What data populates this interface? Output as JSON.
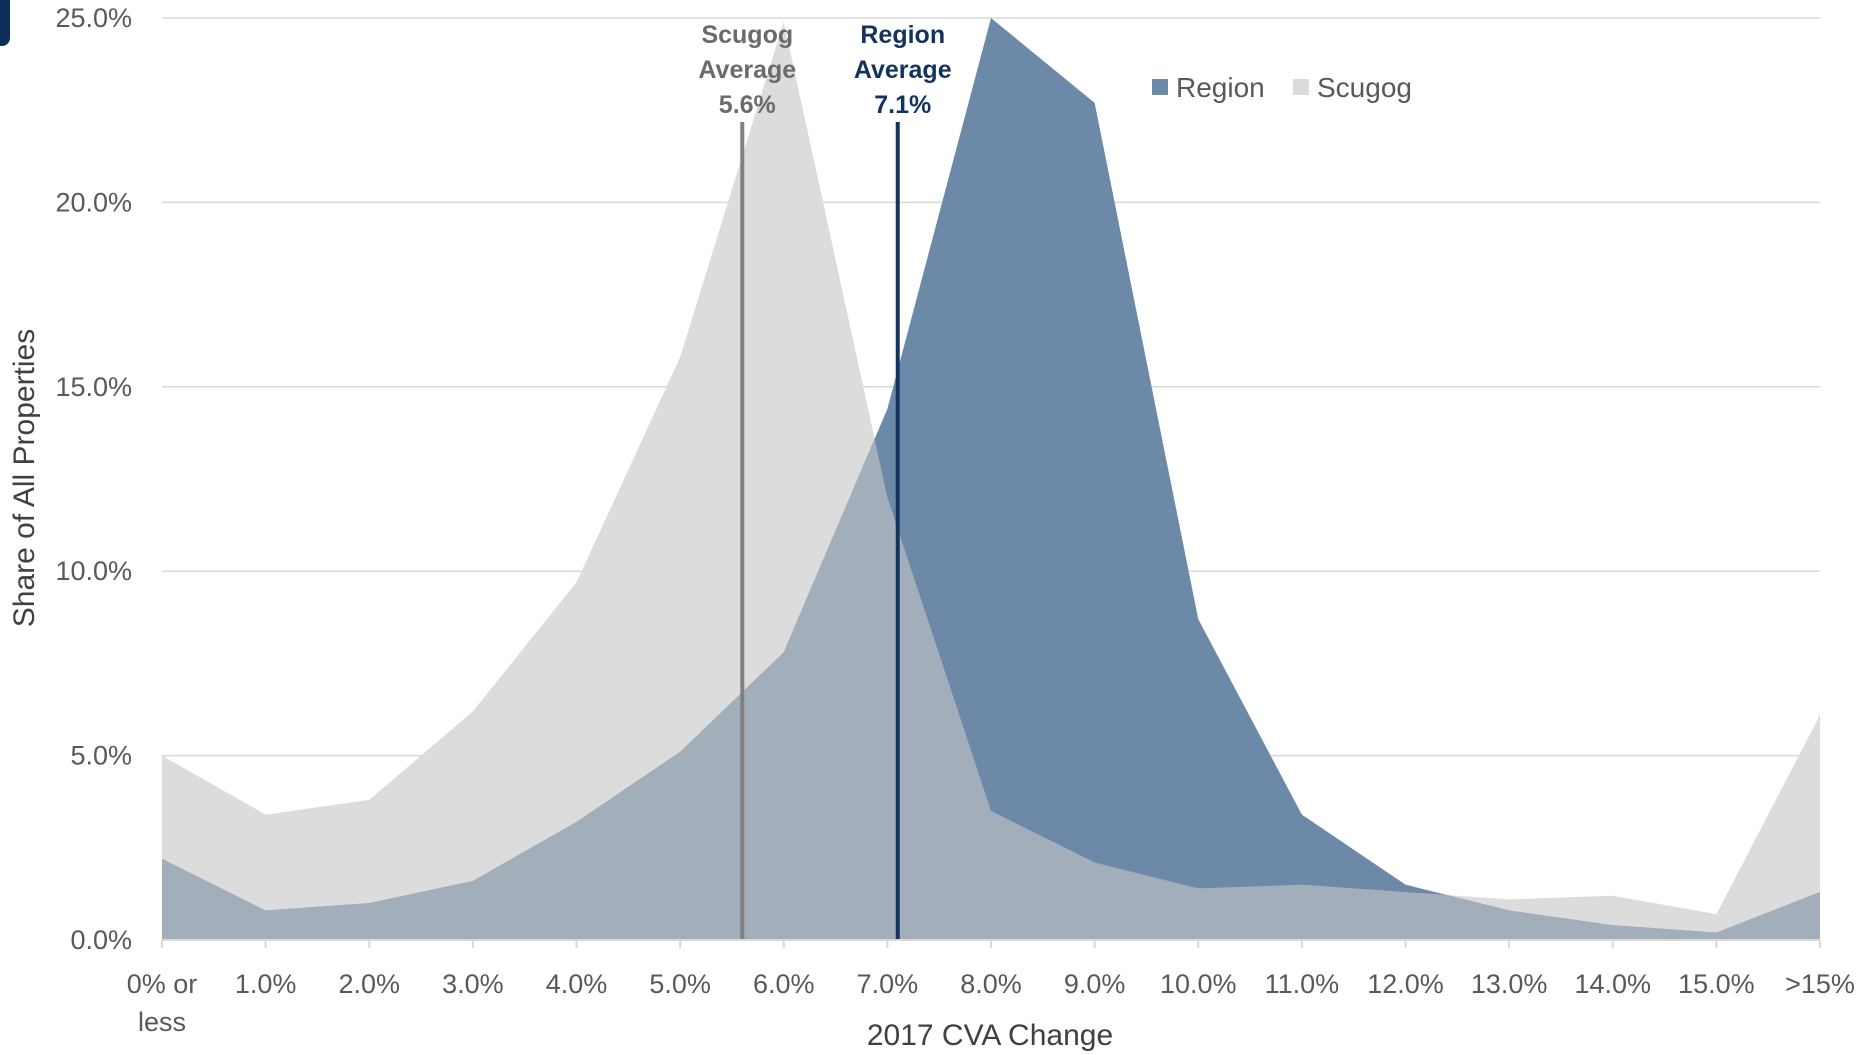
{
  "chart_data": {
    "type": "area",
    "categories": [
      "0% or less",
      "1.0%",
      "2.0%",
      "3.0%",
      "4.0%",
      "5.0%",
      "6.0%",
      "7.0%",
      "8.0%",
      "9.0%",
      "10.0%",
      "11.0%",
      "12.0%",
      "13.0%",
      "14.0%",
      "15.0%",
      ">15%"
    ],
    "series": [
      {
        "name": "Scugog",
        "color": "#dcdcdc",
        "values": [
          5.0,
          3.4,
          3.8,
          6.2,
          9.7,
          15.8,
          24.9,
          12.0,
          3.5,
          2.1,
          1.4,
          1.5,
          1.3,
          1.1,
          1.2,
          0.7,
          6.1
        ]
      },
      {
        "name": "Region",
        "color": "#6c89a8",
        "values": [
          2.2,
          0.8,
          1.0,
          1.6,
          3.2,
          5.1,
          7.8,
          14.4,
          25.0,
          22.7,
          8.7,
          3.4,
          1.5,
          0.8,
          0.4,
          0.2,
          1.3
        ]
      }
    ],
    "overlap_color": "#a3aebb",
    "ylim": [
      0,
      25
    ],
    "y_ticks": [
      "0.0%",
      "5.0%",
      "10.0%",
      "15.0%",
      "20.0%",
      "25.0%"
    ],
    "y_tick_values": [
      0,
      5,
      10,
      15,
      20,
      25
    ],
    "xlabel": "2017 CVA Change",
    "ylabel": "Share of All Properties",
    "grid": true,
    "legend_position": "top-center",
    "averages": [
      {
        "name": "Scugog",
        "value": 5.6,
        "color": "#808080",
        "text_color": "#6b6b6b",
        "label_lines": [
          "Scugog",
          "Average",
          "5.6%"
        ]
      },
      {
        "name": "Region",
        "value": 7.1,
        "color": "#13335e",
        "text_color": "#13335e",
        "label_lines": [
          "Region",
          "Average",
          "7.1%"
        ]
      }
    ]
  }
}
